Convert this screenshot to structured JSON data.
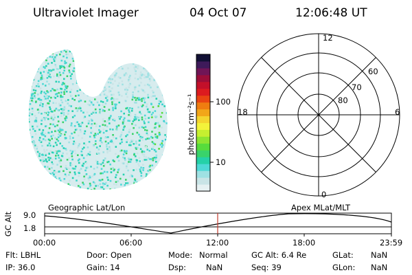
{
  "header": {
    "instrument": "Ultraviolet Imager",
    "date": "04 Oct 07",
    "time": "12:06:48 UT"
  },
  "colorbar": {
    "unit_label": "photon cm⁻²s⁻¹",
    "ticks": [
      "100",
      "10"
    ],
    "colors": [
      "#e6f1f2",
      "#c9e4e6",
      "#9fe1e3",
      "#4ed9d6",
      "#25d1a8",
      "#39d36b",
      "#57dc3c",
      "#8ee532",
      "#c6ef30",
      "#f3f33a",
      "#f4d52f",
      "#f2a619",
      "#ef7d10",
      "#e94512",
      "#dc1b1f",
      "#c3102a",
      "#9c0e39",
      "#701556",
      "#3e1a5a",
      "#111034"
    ]
  },
  "polar_plot": {
    "mlt_labels": {
      "top": "12",
      "left": "18",
      "right": "6",
      "bottom": "0"
    },
    "lat_labels": [
      "80",
      "70",
      "60"
    ]
  },
  "timeline": {
    "title_left": "Geographic Lat/Lon",
    "title_right": "Apex MLat/MLT",
    "yaxis_label": "GC Alt",
    "ytick_top": "9.0",
    "ytick_bottom": "1.8",
    "xticks": [
      "00:00",
      "06:00",
      "12:00",
      "18:00",
      "23:59"
    ],
    "marker_time": "12:06:48",
    "marker_color": "#c0392b"
  },
  "info": {
    "col1": [
      "Flt: LBHL",
      "IP: 36.0"
    ],
    "col2": [
      "Door: Open",
      "Gain: 14"
    ],
    "col3a": [
      "Mode:",
      "Dsp:"
    ],
    "col3b": [
      "Normal",
      "NaN"
    ],
    "col4": [
      "GC Alt: 6.4 Re",
      "Seq: 39"
    ],
    "col5a": [
      "GLat:",
      "GLon:"
    ],
    "col5b": [
      "NaN",
      "NaN"
    ]
  }
}
